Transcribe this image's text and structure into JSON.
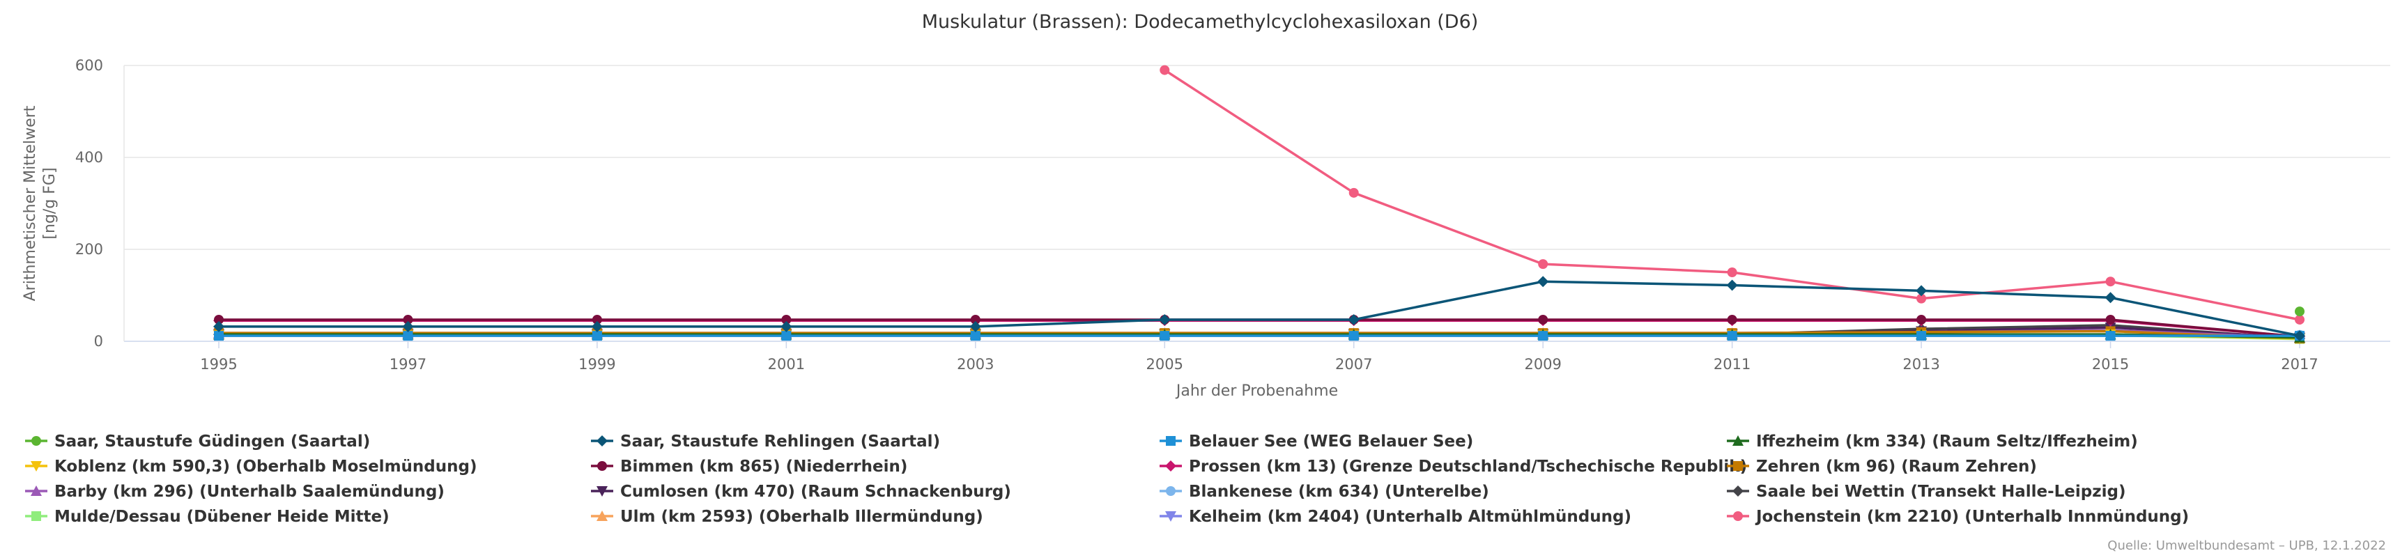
{
  "chart_data": {
    "type": "line",
    "title": "Muskulatur (Brassen): Dodecamethylcyclohexasiloxan (D6)",
    "xlabel": "Jahr der Probenahme",
    "ylabel": [
      "Arithmetischer Mittelwert",
      "[ng/g FG]"
    ],
    "x": [
      1995,
      1997,
      1999,
      2001,
      2003,
      2005,
      2007,
      2009,
      2011,
      2013,
      2015,
      2017
    ],
    "x_ticks": [
      "1995",
      "1997",
      "1999",
      "2001",
      "2003",
      "2005",
      "2007",
      "2009",
      "2011",
      "2013",
      "2015",
      "2017"
    ],
    "ylim": [
      0,
      600
    ],
    "y_ticks": [
      "0",
      "200",
      "400",
      "600"
    ],
    "grid": true,
    "legend_position": "bottom",
    "series": [
      {
        "name": "Saar, Staustufe Güdingen (Saartal)",
        "color": "#5bb531",
        "marker": "circle",
        "values": [
          null,
          null,
          null,
          null,
          null,
          null,
          null,
          null,
          null,
          null,
          null,
          65
        ]
      },
      {
        "name": "Saar, Staustufe Rehlingen (Saartal)",
        "color": "#0b5577",
        "marker": "diamond",
        "values": [
          32,
          32,
          32,
          32,
          32,
          47,
          47,
          130,
          122,
          110,
          95,
          12
        ]
      },
      {
        "name": "Belauer See (WEG Belauer See)",
        "color": "#1e90d6",
        "marker": "square",
        "values": [
          12,
          12,
          12,
          12,
          12,
          12,
          12,
          12,
          12,
          12,
          12,
          12
        ]
      },
      {
        "name": "Iffezheim (km 334) (Raum Seltz/Iffezheim)",
        "color": "#1e6b1e",
        "marker": "triangle",
        "values": [
          15,
          15,
          15,
          15,
          15,
          15,
          15,
          15,
          15,
          15,
          15,
          8
        ]
      },
      {
        "name": "Koblenz (km 590,3) (Oberhalb Moselmündung)",
        "color": "#f4c20d",
        "marker": "triangle-down",
        "values": [
          13,
          13,
          13,
          13,
          13,
          13,
          13,
          13,
          13,
          13,
          15,
          6
        ]
      },
      {
        "name": "Bimmen (km 865) (Niederrhein)",
        "color": "#7a0d3d",
        "marker": "circle",
        "values": [
          47,
          47,
          47,
          47,
          47,
          47,
          47,
          47,
          47,
          47,
          47,
          10
        ]
      },
      {
        "name": "Prossen (km 13) (Grenze Deutschland/Tschechische Republik)",
        "color": "#c9156d",
        "marker": "diamond",
        "values": [
          45,
          45,
          45,
          45,
          45,
          45,
          45,
          45,
          45,
          45,
          45,
          10
        ]
      },
      {
        "name": "Zehren (km 96) (Raum Zehren)",
        "color": "#c47a00",
        "marker": "square",
        "values": [
          18,
          18,
          18,
          18,
          18,
          18,
          18,
          18,
          18,
          20,
          22,
          6
        ]
      },
      {
        "name": "Barby (km 296) (Unterhalb Saalemündung)",
        "color": "#9b59b6",
        "marker": "triangle",
        "values": [
          18,
          18,
          18,
          18,
          18,
          18,
          18,
          18,
          18,
          20,
          24,
          8
        ]
      },
      {
        "name": "Cumlosen (km 470) (Raum Schnackenburg)",
        "color": "#4a235a",
        "marker": "triangle-down",
        "values": [
          16,
          16,
          16,
          16,
          16,
          16,
          16,
          16,
          16,
          22,
          30,
          8
        ]
      },
      {
        "name": "Blankenese (km 634) (Unterelbe)",
        "color": "#7cb5ec",
        "marker": "circle",
        "values": [
          14,
          14,
          14,
          14,
          14,
          14,
          14,
          14,
          14,
          14,
          14,
          14
        ]
      },
      {
        "name": "Saale bei Wettin (Transekt Halle-Leipzig)",
        "color": "#434348",
        "marker": "diamond",
        "values": [
          15,
          15,
          15,
          15,
          15,
          15,
          15,
          15,
          15,
          27,
          35,
          6
        ]
      },
      {
        "name": "Mulde/Dessau (Dübener Heide Mitte)",
        "color": "#90ed7d",
        "marker": "square",
        "values": [
          13,
          13,
          13,
          13,
          13,
          13,
          13,
          13,
          13,
          13,
          13,
          5
        ]
      },
      {
        "name": "Ulm (km 2593) (Oberhalb Illermündung)",
        "color": "#f7a35c",
        "marker": "triangle",
        "values": [
          14,
          14,
          14,
          14,
          14,
          14,
          14,
          14,
          14,
          14,
          14,
          6
        ]
      },
      {
        "name": "Kelheim (km 2404) (Unterhalb Altmühlmündung)",
        "color": "#8085e9",
        "marker": "triangle-down",
        "values": [
          14,
          14,
          14,
          14,
          14,
          14,
          14,
          14,
          14,
          14,
          14,
          8
        ]
      },
      {
        "name": "Jochenstein (km 2210) (Unterhalb Innmündung)",
        "color": "#f15c80",
        "marker": "circle",
        "values": [
          null,
          null,
          null,
          null,
          null,
          590,
          323,
          168,
          150,
          93,
          130,
          47
        ]
      }
    ],
    "source": "Quelle: Umweltbundesamt – UPB, 12.1.2022"
  }
}
